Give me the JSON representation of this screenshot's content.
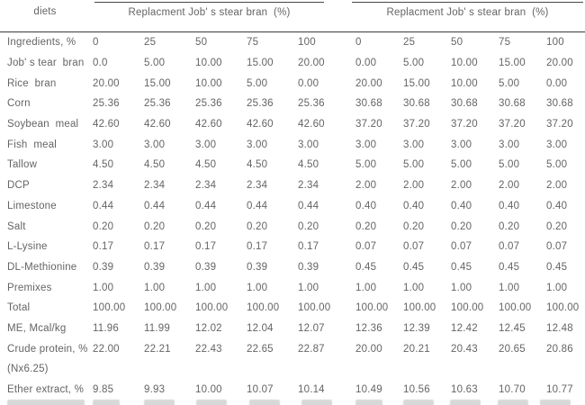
{
  "page": {
    "background": "#ffffff",
    "text_color": "#646464",
    "rule_color": "#3d3d3d"
  },
  "table": {
    "corner_label": "diets",
    "left_group_title": "Replacment Job' s stear bran  (%)",
    "right_group_title": "Replacment Job' s stear bran  (%)",
    "rows": [
      {
        "label": "Ingredients, %",
        "left": [
          "0",
          "25",
          "50",
          "75",
          "100"
        ],
        "right": [
          "0",
          "25",
          "50",
          "75",
          "100"
        ]
      },
      {
        "label": "Job' s tear  bran",
        "left": [
          "0.0",
          "5.00",
          "10.00",
          "15.00",
          "20.00"
        ],
        "right": [
          "0.00",
          "5.00",
          "10.00",
          "15.00",
          "20.00"
        ]
      },
      {
        "label": "Rice  bran",
        "left": [
          "20.00",
          "15.00",
          "10.00",
          "5.00",
          "0.00"
        ],
        "right": [
          "20.00",
          "15.00",
          "10.00",
          "5.00",
          "0.00"
        ]
      },
      {
        "label": "Corn",
        "left": [
          "25.36",
          "25.36",
          "25.36",
          "25.36",
          "25.36"
        ],
        "right": [
          "30.68",
          "30.68",
          "30.68",
          "30.68",
          "30.68"
        ]
      },
      {
        "label": "Soybean  meal",
        "left": [
          "42.60",
          "42.60",
          "42.60",
          "42.60",
          "42.60"
        ],
        "right": [
          "37.20",
          "37.20",
          "37.20",
          "37.20",
          "37.20"
        ]
      },
      {
        "label": "Fish  meal",
        "left": [
          "3.00",
          "3.00",
          "3.00",
          "3.00",
          "3.00"
        ],
        "right": [
          "3.00",
          "3.00",
          "3.00",
          "3.00",
          "3.00"
        ]
      },
      {
        "label": "Tallow",
        "left": [
          "4.50",
          "4.50",
          "4.50",
          "4.50",
          "4.50"
        ],
        "right": [
          "5.00",
          "5.00",
          "5.00",
          "5.00",
          "5.00"
        ]
      },
      {
        "label": "DCP",
        "left": [
          "2.34",
          "2.34",
          "2.34",
          "2.34",
          "2.34"
        ],
        "right": [
          "2.00",
          "2.00",
          "2.00",
          "2.00",
          "2.00"
        ]
      },
      {
        "label": "Limestone",
        "left": [
          "0.44",
          "0.44",
          "0.44",
          "0.44",
          "0.44"
        ],
        "right": [
          "0.40",
          "0.40",
          "0.40",
          "0.40",
          "0.40"
        ]
      },
      {
        "label": "Salt",
        "left": [
          "0.20",
          "0.20",
          "0.20",
          "0.20",
          "0.20"
        ],
        "right": [
          "0.20",
          "0.20",
          "0.20",
          "0.20",
          "0.20"
        ]
      },
      {
        "label": "L-Lysine",
        "left": [
          "0.17",
          "0.17",
          "0.17",
          "0.17",
          "0.17"
        ],
        "right": [
          "0.07",
          "0.07",
          "0.07",
          "0.07",
          "0.07"
        ]
      },
      {
        "label": "DL-Methionine",
        "left": [
          "0.39",
          "0.39",
          "0.39",
          "0.39",
          "0.39"
        ],
        "right": [
          "0.45",
          "0.45",
          "0.45",
          "0.45",
          "0.45"
        ]
      },
      {
        "label": "Premixes",
        "left": [
          "1.00",
          "1.00",
          "1.00",
          "1.00",
          "1.00"
        ],
        "right": [
          "1.00",
          "1.00",
          "1.00",
          "1.00",
          "1.00"
        ]
      },
      {
        "label": "Total",
        "left": [
          "100.00",
          "100.00",
          "100.00",
          "100.00",
          "100.00"
        ],
        "right": [
          "100.00",
          "100.00",
          "100.00",
          "100.00",
          "100.00"
        ]
      },
      {
        "label": "ME, Mcal/kg",
        "left": [
          "11.96",
          "11.99",
          "12.02",
          "12.04",
          "12.07"
        ],
        "right": [
          "12.36",
          "12.39",
          "12.42",
          "12.45",
          "12.48"
        ]
      },
      {
        "label": "Crude protein, %",
        "left": [
          "22.00",
          "22.21",
          "22.43",
          "22.65",
          "22.87"
        ],
        "right": [
          "20.00",
          "20.21",
          "20.43",
          "20.65",
          "20.86"
        ]
      },
      {
        "label": "(Nx6.25)",
        "left": [],
        "right": []
      },
      {
        "label": "Ether extract, %",
        "left": [
          "9.85",
          "9.93",
          "10.00",
          "10.07",
          "10.14"
        ],
        "right": [
          "10.49",
          "10.56",
          "10.63",
          "10.70",
          "10.77"
        ]
      }
    ],
    "truncated_row_visible": true
  }
}
